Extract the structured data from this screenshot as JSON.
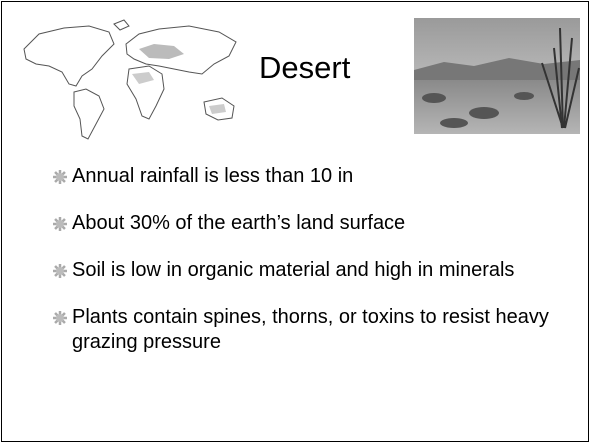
{
  "title": "Desert",
  "bullets": [
    "Annual rainfall is less than 10 in",
    "About 30% of the earth’s land surface",
    "Soil is low in organic material and high in minerals",
    "Plants contain spines, thorns, or toxins to resist heavy grazing pressure"
  ]
}
